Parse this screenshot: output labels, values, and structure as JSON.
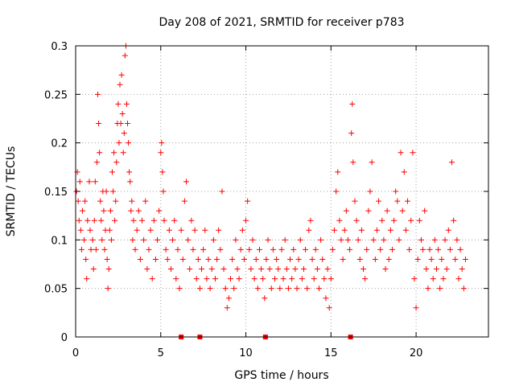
{
  "chart_data": {
    "type": "scatter",
    "title": "Day 208 of 2021, SRMTID for receiver p783",
    "xlabel": "GPS time / hours",
    "ylabel": "SRMTID / TECUs",
    "xlim": [
      0,
      24.25
    ],
    "ylim": [
      0,
      0.3
    ],
    "xticks": [
      0,
      5,
      10,
      15,
      20
    ],
    "xtick_labels": [
      "0",
      "5",
      "10",
      "15",
      "20"
    ],
    "yticks": [
      0,
      0.05,
      0.1,
      0.15,
      0.2,
      0.25,
      0.3
    ],
    "ytick_labels": [
      "0",
      "0.05",
      "0.1",
      "0.15",
      "0.2",
      "0.25",
      "0.3"
    ],
    "grid": true,
    "marker": "plus",
    "color": "#ff0000",
    "series": [
      {
        "name": "SRMTID",
        "points": [
          [
            0.05,
            0.15
          ],
          [
            0.1,
            0.17
          ],
          [
            0.15,
            0.14
          ],
          [
            0.2,
            0.12
          ],
          [
            0.25,
            0.16
          ],
          [
            0.3,
            0.11
          ],
          [
            0.35,
            0.09
          ],
          [
            0.4,
            0.13
          ],
          [
            0.5,
            0.1
          ],
          [
            0.55,
            0.14
          ],
          [
            0.6,
            0.08
          ],
          [
            0.65,
            0.06
          ],
          [
            0.7,
            0.12
          ],
          [
            0.8,
            0.16
          ],
          [
            0.85,
            0.11
          ],
          [
            0.9,
            0.09
          ],
          [
            1.0,
            0.1
          ],
          [
            1.05,
            0.07
          ],
          [
            1.1,
            0.12
          ],
          [
            1.15,
            0.16
          ],
          [
            1.2,
            0.09
          ],
          [
            1.25,
            0.18
          ],
          [
            1.3,
            0.25
          ],
          [
            1.35,
            0.22
          ],
          [
            1.4,
            0.19
          ],
          [
            1.45,
            0.14
          ],
          [
            1.5,
            0.12
          ],
          [
            1.55,
            0.1
          ],
          [
            1.6,
            0.15
          ],
          [
            1.65,
            0.13
          ],
          [
            1.7,
            0.09
          ],
          [
            1.75,
            0.11
          ],
          [
            1.8,
            0.15
          ],
          [
            1.85,
            0.08
          ],
          [
            1.9,
            0.05
          ],
          [
            1.95,
            0.07
          ],
          [
            2.0,
            0.11
          ],
          [
            2.05,
            0.13
          ],
          [
            2.1,
            0.1
          ],
          [
            2.15,
            0.17
          ],
          [
            2.2,
            0.15
          ],
          [
            2.25,
            0.19
          ],
          [
            2.3,
            0.12
          ],
          [
            2.35,
            0.14
          ],
          [
            2.4,
            0.18
          ],
          [
            2.45,
            0.22
          ],
          [
            2.5,
            0.24
          ],
          [
            2.55,
            0.2
          ],
          [
            2.6,
            0.26
          ],
          [
            2.65,
            0.22
          ],
          [
            2.7,
            0.27
          ],
          [
            2.75,
            0.23
          ],
          [
            2.8,
            0.19
          ],
          [
            2.85,
            0.21
          ],
          [
            2.9,
            0.29
          ],
          [
            2.95,
            0.3
          ],
          [
            3.0,
            0.24
          ],
          [
            3.05,
            0.22
          ],
          [
            3.1,
            0.2
          ],
          [
            3.15,
            0.17
          ],
          [
            3.2,
            0.16
          ],
          [
            3.25,
            0.13
          ],
          [
            3.3,
            0.14
          ],
          [
            3.35,
            0.1
          ],
          [
            3.4,
            0.12
          ],
          [
            3.5,
            0.09
          ],
          [
            3.6,
            0.11
          ],
          [
            3.7,
            0.13
          ],
          [
            3.8,
            0.08
          ],
          [
            3.9,
            0.12
          ],
          [
            4.0,
            0.1
          ],
          [
            4.1,
            0.14
          ],
          [
            4.2,
            0.07
          ],
          [
            4.3,
            0.09
          ],
          [
            4.4,
            0.11
          ],
          [
            4.5,
            0.06
          ],
          [
            4.6,
            0.12
          ],
          [
            4.7,
            0.08
          ],
          [
            4.8,
            0.1
          ],
          [
            4.9,
            0.13
          ],
          [
            5.0,
            0.19
          ],
          [
            5.05,
            0.2
          ],
          [
            5.1,
            0.17
          ],
          [
            5.15,
            0.15
          ],
          [
            5.2,
            0.12
          ],
          [
            5.3,
            0.09
          ],
          [
            5.4,
            0.08
          ],
          [
            5.5,
            0.11
          ],
          [
            5.6,
            0.07
          ],
          [
            5.7,
            0.1
          ],
          [
            5.8,
            0.12
          ],
          [
            5.9,
            0.06
          ],
          [
            6.0,
            0.09
          ],
          [
            6.1,
            0.05
          ],
          [
            6.2,
            0.11
          ],
          [
            6.3,
            0.08
          ],
          [
            6.4,
            0.14
          ],
          [
            6.5,
            0.16
          ],
          [
            6.6,
            0.1
          ],
          [
            6.7,
            0.07
          ],
          [
            6.8,
            0.12
          ],
          [
            6.9,
            0.09
          ],
          [
            7.0,
            0.11
          ],
          [
            7.1,
            0.06
          ],
          [
            7.2,
            0.08
          ],
          [
            7.3,
            0.05
          ],
          [
            7.4,
            0.07
          ],
          [
            7.5,
            0.09
          ],
          [
            7.6,
            0.11
          ],
          [
            7.7,
            0.06
          ],
          [
            7.8,
            0.08
          ],
          [
            7.9,
            0.05
          ],
          [
            8.0,
            0.07
          ],
          [
            8.1,
            0.1
          ],
          [
            8.2,
            0.06
          ],
          [
            8.3,
            0.08
          ],
          [
            8.4,
            0.11
          ],
          [
            8.5,
            0.09
          ],
          [
            8.6,
            0.15
          ],
          [
            8.7,
            0.07
          ],
          [
            8.8,
            0.05
          ],
          [
            8.9,
            0.03
          ],
          [
            9.0,
            0.04
          ],
          [
            9.1,
            0.06
          ],
          [
            9.2,
            0.08
          ],
          [
            9.3,
            0.05
          ],
          [
            9.4,
            0.1
          ],
          [
            9.5,
            0.07
          ],
          [
            9.6,
            0.06
          ],
          [
            9.7,
            0.09
          ],
          [
            9.8,
            0.11
          ],
          [
            9.9,
            0.08
          ],
          [
            10.0,
            0.12
          ],
          [
            10.1,
            0.14
          ],
          [
            10.2,
            0.09
          ],
          [
            10.3,
            0.07
          ],
          [
            10.4,
            0.1
          ],
          [
            10.5,
            0.06
          ],
          [
            10.6,
            0.08
          ],
          [
            10.7,
            0.05
          ],
          [
            10.8,
            0.09
          ],
          [
            10.9,
            0.07
          ],
          [
            11.0,
            0.06
          ],
          [
            11.1,
            0.04
          ],
          [
            11.2,
            0.08
          ],
          [
            11.3,
            0.1
          ],
          [
            11.4,
            0.07
          ],
          [
            11.5,
            0.05
          ],
          [
            11.6,
            0.09
          ],
          [
            11.7,
            0.06
          ],
          [
            11.8,
            0.08
          ],
          [
            11.9,
            0.07
          ],
          [
            12.0,
            0.05
          ],
          [
            12.1,
            0.09
          ],
          [
            12.2,
            0.06
          ],
          [
            12.3,
            0.1
          ],
          [
            12.4,
            0.07
          ],
          [
            12.5,
            0.05
          ],
          [
            12.6,
            0.08
          ],
          [
            12.7,
            0.06
          ],
          [
            12.8,
            0.09
          ],
          [
            12.9,
            0.07
          ],
          [
            13.0,
            0.05
          ],
          [
            13.1,
            0.08
          ],
          [
            13.2,
            0.1
          ],
          [
            13.3,
            0.06
          ],
          [
            13.4,
            0.07
          ],
          [
            13.5,
            0.09
          ],
          [
            13.6,
            0.05
          ],
          [
            13.7,
            0.11
          ],
          [
            13.8,
            0.12
          ],
          [
            13.9,
            0.08
          ],
          [
            14.0,
            0.06
          ],
          [
            14.1,
            0.09
          ],
          [
            14.2,
            0.07
          ],
          [
            14.3,
            0.05
          ],
          [
            14.4,
            0.1
          ],
          [
            14.5,
            0.08
          ],
          [
            14.6,
            0.06
          ],
          [
            14.7,
            0.04
          ],
          [
            14.8,
            0.07
          ],
          [
            14.9,
            0.03
          ],
          [
            15.0,
            0.06
          ],
          [
            15.1,
            0.09
          ],
          [
            15.2,
            0.11
          ],
          [
            15.3,
            0.15
          ],
          [
            15.4,
            0.17
          ],
          [
            15.5,
            0.12
          ],
          [
            15.6,
            0.1
          ],
          [
            15.7,
            0.08
          ],
          [
            15.8,
            0.11
          ],
          [
            15.9,
            0.13
          ],
          [
            16.0,
            0.1
          ],
          [
            16.1,
            0.09
          ],
          [
            16.2,
            0.21
          ],
          [
            16.25,
            0.24
          ],
          [
            16.3,
            0.18
          ],
          [
            16.4,
            0.14
          ],
          [
            16.5,
            0.12
          ],
          [
            16.6,
            0.1
          ],
          [
            16.7,
            0.08
          ],
          [
            16.8,
            0.11
          ],
          [
            16.9,
            0.07
          ],
          [
            17.0,
            0.06
          ],
          [
            17.1,
            0.09
          ],
          [
            17.2,
            0.13
          ],
          [
            17.3,
            0.15
          ],
          [
            17.4,
            0.18
          ],
          [
            17.5,
            0.1
          ],
          [
            17.6,
            0.08
          ],
          [
            17.7,
            0.11
          ],
          [
            17.8,
            0.14
          ],
          [
            17.9,
            0.09
          ],
          [
            18.0,
            0.12
          ],
          [
            18.1,
            0.1
          ],
          [
            18.2,
            0.07
          ],
          [
            18.3,
            0.13
          ],
          [
            18.4,
            0.08
          ],
          [
            18.5,
            0.11
          ],
          [
            18.6,
            0.09
          ],
          [
            18.7,
            0.12
          ],
          [
            18.8,
            0.15
          ],
          [
            18.9,
            0.14
          ],
          [
            19.0,
            0.1
          ],
          [
            19.1,
            0.19
          ],
          [
            19.2,
            0.13
          ],
          [
            19.3,
            0.17
          ],
          [
            19.4,
            0.11
          ],
          [
            19.5,
            0.14
          ],
          [
            19.6,
            0.09
          ],
          [
            19.7,
            0.12
          ],
          [
            19.8,
            0.19
          ],
          [
            19.9,
            0.06
          ],
          [
            20.0,
            0.03
          ],
          [
            20.1,
            0.08
          ],
          [
            20.2,
            0.12
          ],
          [
            20.3,
            0.1
          ],
          [
            20.4,
            0.09
          ],
          [
            20.5,
            0.13
          ],
          [
            20.6,
            0.07
          ],
          [
            20.7,
            0.05
          ],
          [
            20.8,
            0.09
          ],
          [
            20.9,
            0.08
          ],
          [
            21.0,
            0.06
          ],
          [
            21.1,
            0.1
          ],
          [
            21.2,
            0.07
          ],
          [
            21.3,
            0.09
          ],
          [
            21.4,
            0.05
          ],
          [
            21.5,
            0.08
          ],
          [
            21.6,
            0.06
          ],
          [
            21.7,
            0.1
          ],
          [
            21.8,
            0.07
          ],
          [
            21.9,
            0.11
          ],
          [
            22.0,
            0.09
          ],
          [
            22.1,
            0.18
          ],
          [
            22.2,
            0.12
          ],
          [
            22.3,
            0.08
          ],
          [
            22.4,
            0.1
          ],
          [
            22.5,
            0.06
          ],
          [
            22.6,
            0.09
          ],
          [
            22.7,
            0.07
          ],
          [
            22.8,
            0.05
          ],
          [
            22.9,
            0.08
          ]
        ]
      }
    ],
    "zero_markers_x": [
      6.2,
      7.3,
      11.15,
      16.15
    ]
  }
}
